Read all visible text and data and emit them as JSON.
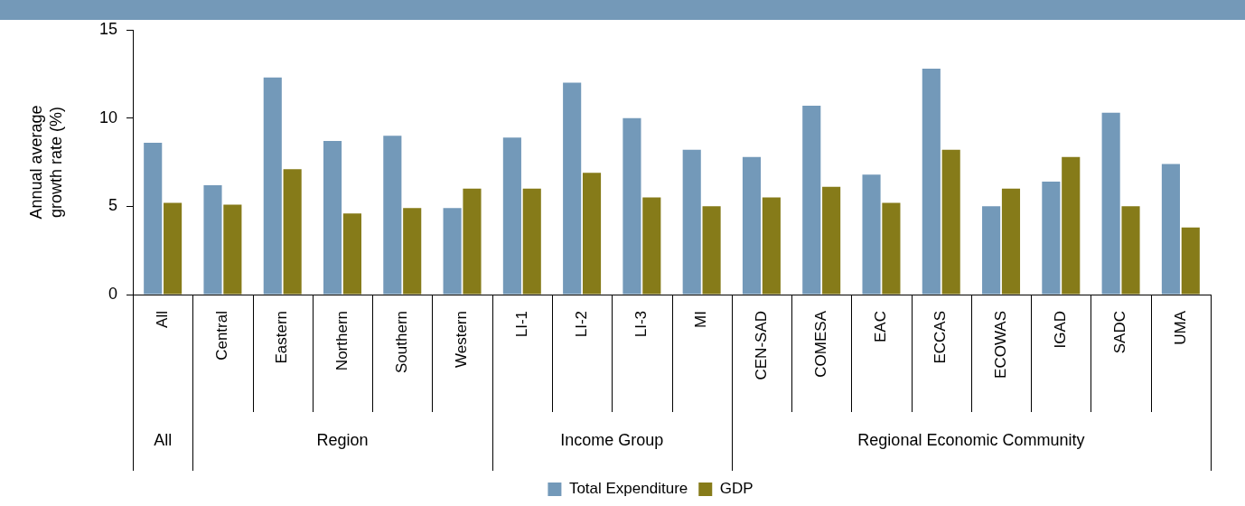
{
  "chart_data": {
    "type": "bar",
    "ylabel": "Annual average growth rate (%)",
    "categories": [
      "All",
      "Central",
      "Eastern",
      "Northern",
      "Southern",
      "Western",
      "LI-1",
      "LI-2",
      "LI-3",
      "MI",
      "CEN-SAD",
      "COMESA",
      "EAC",
      "ECCAS",
      "ECOWAS",
      "IGAD",
      "SADC",
      "UMA"
    ],
    "series": [
      {
        "name": "Total Expenditure",
        "color": "#7399b9",
        "values": [
          8.6,
          6.2,
          12.3,
          8.7,
          9.0,
          4.9,
          8.9,
          12.0,
          10.0,
          8.2,
          7.8,
          10.7,
          6.8,
          12.8,
          5.0,
          6.4,
          10.3,
          7.4
        ]
      },
      {
        "name": "GDP",
        "color": "#867b19",
        "values": [
          5.2,
          5.1,
          7.1,
          4.6,
          4.9,
          6.0,
          6.0,
          6.9,
          5.5,
          5.0,
          5.5,
          6.1,
          5.2,
          8.2,
          6.0,
          7.8,
          5.0,
          3.8
        ]
      }
    ],
    "annotations": [
      "All",
      "Region",
      "Income Group",
      "Regional Economic Community"
    ],
    "ylim": [
      0,
      15
    ],
    "yticks": [
      0,
      5,
      10,
      15
    ],
    "grid": false,
    "legend": "bottom"
  }
}
